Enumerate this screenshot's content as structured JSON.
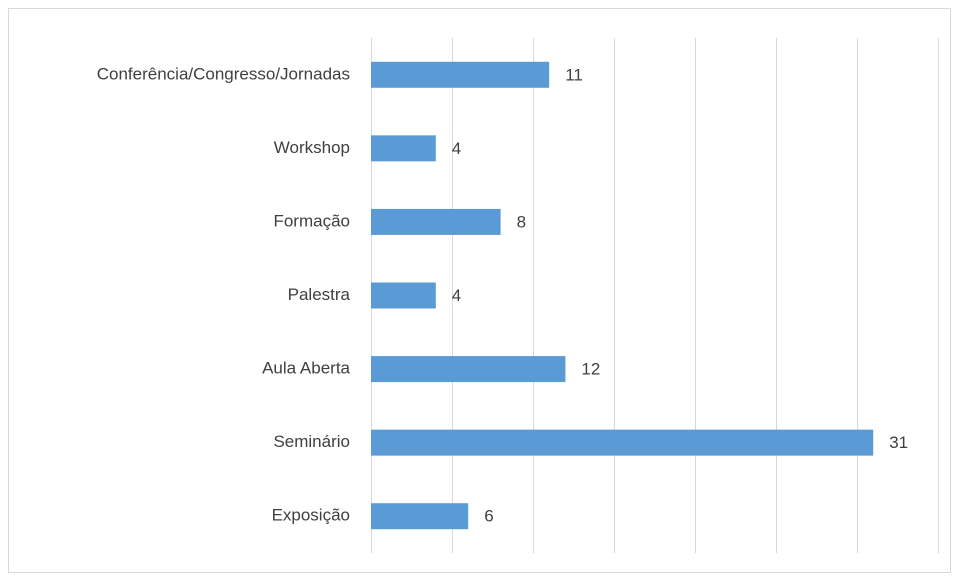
{
  "chart_data": {
    "type": "barh",
    "categories": [
      "Conferência/Congresso/Jornadas",
      "Workshop",
      "Formação",
      "Palestra",
      "Aula Aberta",
      "Seminário",
      "Exposição"
    ],
    "values": [
      11,
      4,
      8,
      4,
      12,
      31,
      6
    ],
    "color": "#5b9bd5",
    "xlim": [
      0,
      35
    ],
    "xticks": [
      0,
      5,
      10,
      15,
      20,
      25,
      30,
      35
    ],
    "grid": true
  }
}
